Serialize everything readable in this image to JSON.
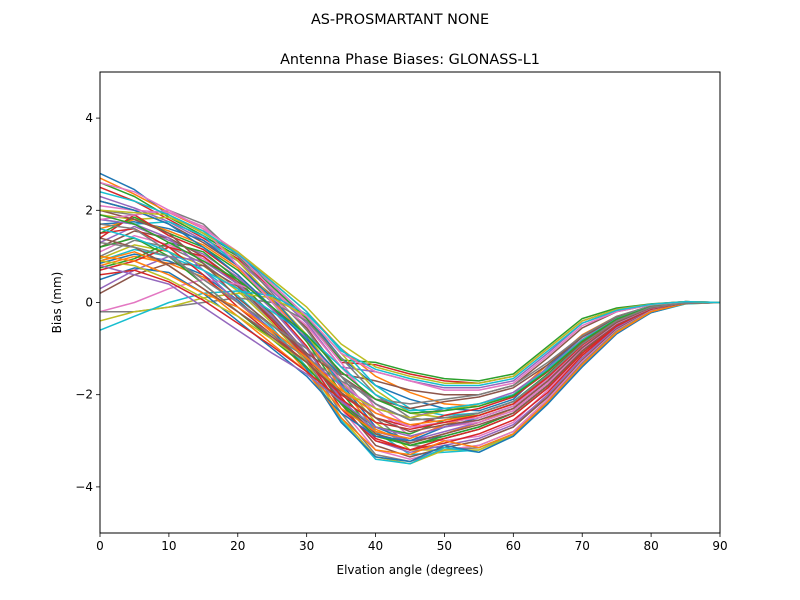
{
  "figure": {
    "suptitle": "AS-PROSMARTANT  NONE"
  },
  "chart_data": {
    "type": "line",
    "title": "Antenna Phase Biases: GLONASS-L1",
    "xlabel": "Elvation angle (degrees)",
    "ylabel": "Bias (mm)",
    "xlim": [
      0,
      90
    ],
    "ylim": [
      -5,
      5
    ],
    "xticks": [
      0,
      10,
      20,
      30,
      40,
      50,
      60,
      70,
      80,
      90
    ],
    "yticks": [
      -4,
      -2,
      0,
      2,
      4
    ],
    "grid": false,
    "legend": "none",
    "x": [
      0,
      5,
      10,
      15,
      20,
      25,
      30,
      35,
      40,
      45,
      50,
      55,
      60,
      65,
      70,
      75,
      80,
      85,
      90
    ],
    "series_colors": [
      "#1f77b4",
      "#ff7f0e",
      "#2ca02c",
      "#d62728",
      "#9467bd",
      "#8c564b",
      "#e377c2",
      "#7f7f7f",
      "#bcbd22",
      "#17becf"
    ],
    "series": [
      {
        "values": [
          2.8,
          2.45,
          1.9,
          1.5,
          1.05,
          0.4,
          -0.3,
          -1.2,
          -1.8,
          -2.1,
          -2.3,
          -2.35,
          -2.1,
          -1.4,
          -0.75,
          -0.35,
          -0.1,
          0.02,
          0.0
        ]
      },
      {
        "values": [
          2.7,
          2.35,
          1.95,
          1.6,
          1.1,
          0.45,
          -0.2,
          -1.0,
          -1.6,
          -1.95,
          -2.2,
          -2.25,
          -2.0,
          -1.35,
          -0.7,
          -0.3,
          -0.08,
          0.02,
          0.0
        ]
      },
      {
        "values": [
          2.6,
          2.3,
          1.85,
          1.45,
          1.0,
          0.35,
          -0.35,
          -1.25,
          -1.3,
          -1.5,
          -1.65,
          -1.7,
          -1.55,
          -0.95,
          -0.35,
          -0.12,
          -0.03,
          0.02,
          0.0
        ]
      },
      {
        "values": [
          2.5,
          2.2,
          1.8,
          1.4,
          0.95,
          0.3,
          -0.4,
          -1.3,
          -1.35,
          -1.55,
          -1.7,
          -1.75,
          -1.6,
          -1.0,
          -0.4,
          -0.15,
          -0.04,
          0.02,
          0.0
        ]
      },
      {
        "values": [
          2.3,
          2.05,
          1.75,
          1.35,
          0.9,
          0.25,
          -0.45,
          -1.4,
          -1.5,
          -1.7,
          -1.85,
          -1.85,
          -1.7,
          -1.1,
          -0.45,
          -0.18,
          -0.05,
          0.01,
          0.0
        ]
      },
      {
        "values": [
          2.2,
          2.0,
          1.7,
          1.3,
          0.8,
          0.15,
          -0.55,
          -1.55,
          -1.7,
          -1.9,
          -2.0,
          -2.0,
          -1.8,
          -1.2,
          -0.55,
          -0.2,
          -0.05,
          0.01,
          0.0
        ]
      },
      {
        "values": [
          2.1,
          2.0,
          1.95,
          1.65,
          1.05,
          0.3,
          -0.4,
          -1.3,
          -2.3,
          -2.9,
          -3.0,
          -2.9,
          -2.6,
          -1.9,
          -1.1,
          -0.5,
          -0.15,
          -0.02,
          0.0
        ]
      },
      {
        "values": [
          2.0,
          1.9,
          2.0,
          1.7,
          1.0,
          0.2,
          -0.6,
          -1.6,
          -2.5,
          -3.1,
          -3.15,
          -3.0,
          -2.7,
          -2.0,
          -1.2,
          -0.55,
          -0.18,
          -0.02,
          0.0
        ]
      },
      {
        "values": [
          1.9,
          1.8,
          1.85,
          1.55,
          0.9,
          0.1,
          -0.7,
          -1.7,
          -2.6,
          -3.2,
          -3.2,
          -3.1,
          -2.8,
          -2.1,
          -1.3,
          -0.6,
          -0.2,
          -0.03,
          0.0
        ]
      },
      {
        "values": [
          1.8,
          1.7,
          1.75,
          1.45,
          0.8,
          0.0,
          -0.8,
          -1.8,
          -2.8,
          -3.3,
          -3.25,
          -3.2,
          -2.85,
          -2.15,
          -1.35,
          -0.65,
          -0.22,
          -0.03,
          0.0
        ]
      },
      {
        "values": [
          1.7,
          1.75,
          1.6,
          1.35,
          0.8,
          0.1,
          -0.75,
          -1.75,
          -2.7,
          -3.0,
          -2.9,
          -2.7,
          -2.4,
          -1.8,
          -1.05,
          -0.45,
          -0.12,
          -0.01,
          0.0
        ]
      },
      {
        "values": [
          1.6,
          1.8,
          1.55,
          1.25,
          0.75,
          0.05,
          -0.8,
          -1.85,
          -2.75,
          -3.05,
          -2.85,
          -2.6,
          -2.3,
          -1.7,
          -1.0,
          -0.42,
          -0.1,
          -0.01,
          0.0
        ]
      },
      {
        "values": [
          1.5,
          1.85,
          1.5,
          1.2,
          0.7,
          0.0,
          -0.85,
          -1.95,
          -2.85,
          -3.1,
          -2.95,
          -2.75,
          -2.45,
          -1.85,
          -1.1,
          -0.48,
          -0.13,
          -0.01,
          0.0
        ]
      },
      {
        "values": [
          1.4,
          1.9,
          1.45,
          1.15,
          0.6,
          -0.1,
          -0.95,
          -2.05,
          -2.95,
          -3.2,
          -3.05,
          -2.85,
          -2.55,
          -1.95,
          -1.15,
          -0.52,
          -0.15,
          -0.02,
          0.0
        ]
      },
      {
        "values": [
          1.3,
          1.65,
          1.35,
          1.05,
          0.55,
          -0.15,
          -1.0,
          -2.1,
          -3.0,
          -3.25,
          -3.1,
          -2.95,
          -2.65,
          -2.0,
          -1.2,
          -0.55,
          -0.16,
          -0.02,
          0.0
        ]
      },
      {
        "values": [
          1.2,
          1.55,
          1.4,
          1.0,
          0.45,
          -0.25,
          -1.1,
          -2.2,
          -3.1,
          -3.35,
          -3.15,
          -3.0,
          -2.7,
          -2.05,
          -1.25,
          -0.58,
          -0.17,
          -0.02,
          0.0
        ]
      },
      {
        "values": [
          1.1,
          1.45,
          1.25,
          0.95,
          0.4,
          -0.3,
          -1.15,
          -2.3,
          -3.2,
          -3.4,
          -3.2,
          -3.1,
          -2.8,
          -2.1,
          -1.28,
          -0.6,
          -0.18,
          -0.02,
          0.0
        ]
      },
      {
        "values": [
          1.0,
          1.35,
          1.2,
          0.85,
          0.3,
          -0.4,
          -1.25,
          -2.4,
          -3.3,
          -3.45,
          -3.2,
          -3.15,
          -2.85,
          -2.15,
          -1.32,
          -0.62,
          -0.19,
          -0.02,
          0.0
        ]
      },
      {
        "values": [
          0.95,
          1.25,
          1.1,
          0.8,
          0.25,
          -0.45,
          -1.3,
          -2.5,
          -3.35,
          -3.5,
          -3.2,
          -3.2,
          -2.88,
          -2.18,
          -1.35,
          -0.64,
          -0.2,
          -0.02,
          0.0
        ]
      },
      {
        "values": [
          0.9,
          1.15,
          1.0,
          0.7,
          0.15,
          -0.55,
          -1.4,
          -2.55,
          -3.4,
          -3.5,
          -3.15,
          -3.25,
          -2.9,
          -2.2,
          -1.38,
          -0.66,
          -0.21,
          -0.02,
          0.0
        ]
      },
      {
        "values": [
          0.85,
          1.05,
          0.9,
          0.6,
          0.05,
          -0.6,
          -1.45,
          -2.6,
          -3.35,
          -3.45,
          -3.1,
          -3.25,
          -2.9,
          -2.2,
          -1.4,
          -0.68,
          -0.22,
          -0.02,
          0.0
        ]
      },
      {
        "values": [
          0.8,
          1.0,
          0.85,
          0.55,
          0.0,
          -0.65,
          -1.5,
          -2.5,
          -3.2,
          -3.3,
          -3.0,
          -3.15,
          -2.85,
          -2.15,
          -1.35,
          -0.65,
          -0.2,
          -0.02,
          0.0
        ]
      },
      {
        "values": [
          0.75,
          0.95,
          1.3,
          1.1,
          0.5,
          -0.3,
          -1.1,
          -2.2,
          -2.9,
          -3.1,
          -2.9,
          -2.7,
          -2.4,
          -1.8,
          -1.05,
          -0.48,
          -0.13,
          -0.01,
          0.0
        ]
      },
      {
        "values": [
          0.7,
          0.9,
          1.2,
          1.0,
          0.4,
          -0.4,
          -1.2,
          -2.3,
          -3.0,
          -3.2,
          -2.95,
          -2.75,
          -2.45,
          -1.85,
          -1.1,
          -0.5,
          -0.14,
          -0.01,
          0.0
        ]
      },
      {
        "values": [
          0.3,
          0.7,
          1.0,
          0.9,
          0.4,
          -0.3,
          -1.1,
          -2.1,
          -2.8,
          -3.0,
          -2.8,
          -2.6,
          -2.35,
          -1.75,
          -1.0,
          -0.45,
          -0.12,
          -0.01,
          0.0
        ]
      },
      {
        "values": [
          0.2,
          0.6,
          0.85,
          0.8,
          0.35,
          -0.35,
          -1.15,
          -2.15,
          -2.85,
          -3.05,
          -2.85,
          -2.65,
          -2.4,
          -1.8,
          -1.05,
          -0.47,
          -0.13,
          -0.01,
          0.0
        ]
      },
      {
        "values": [
          -0.2,
          0.0,
          0.3,
          0.5,
          0.4,
          0.1,
          -0.5,
          -1.4,
          -2.2,
          -2.7,
          -2.7,
          -2.6,
          -2.35,
          -1.75,
          -1.0,
          -0.45,
          -0.12,
          -0.01,
          0.0
        ]
      },
      {
        "values": [
          -0.2,
          -0.2,
          -0.1,
          0.0,
          0.1,
          0.0,
          -0.4,
          -1.2,
          -2.0,
          -2.5,
          -2.6,
          -2.5,
          -2.25,
          -1.65,
          -0.95,
          -0.42,
          -0.11,
          -0.01,
          0.0
        ]
      },
      {
        "values": [
          -0.4,
          -0.2,
          -0.1,
          0.1,
          0.2,
          0.1,
          -0.3,
          -1.1,
          -1.9,
          -2.4,
          -2.5,
          -2.45,
          -2.2,
          -1.6,
          -0.9,
          -0.4,
          -0.1,
          -0.01,
          0.0
        ]
      },
      {
        "values": [
          -0.6,
          -0.3,
          0.0,
          0.2,
          0.25,
          0.15,
          -0.25,
          -1.0,
          -1.8,
          -2.3,
          -2.45,
          -2.4,
          -2.15,
          -1.55,
          -0.88,
          -0.38,
          -0.1,
          -0.01,
          0.0
        ]
      },
      {
        "values": [
          0.5,
          0.75,
          0.65,
          0.2,
          -0.4,
          -1.0,
          -1.6,
          -2.4,
          -2.9,
          -3.0,
          -2.7,
          -2.5,
          -2.25,
          -1.65,
          -0.95,
          -0.42,
          -0.11,
          -0.01,
          0.0
        ]
      },
      {
        "values": [
          0.9,
          1.1,
          0.8,
          0.3,
          -0.3,
          -0.9,
          -1.5,
          -2.3,
          -2.8,
          -2.95,
          -2.65,
          -2.45,
          -2.2,
          -1.6,
          -0.92,
          -0.4,
          -0.1,
          -0.01,
          0.0
        ]
      },
      {
        "values": [
          1.2,
          1.4,
          1.0,
          0.4,
          -0.2,
          -0.8,
          -1.4,
          -2.2,
          -2.7,
          -2.85,
          -2.55,
          -2.4,
          -2.15,
          -1.55,
          -0.88,
          -0.38,
          -0.1,
          -0.01,
          0.0
        ]
      },
      {
        "values": [
          1.5,
          1.6,
          1.2,
          0.6,
          -0.1,
          -0.7,
          -1.3,
          -2.0,
          -2.5,
          -2.7,
          -2.45,
          -2.3,
          -2.05,
          -1.5,
          -0.85,
          -0.36,
          -0.09,
          -0.01,
          0.0
        ]
      },
      {
        "values": [
          1.8,
          1.7,
          1.4,
          0.7,
          0.0,
          -0.6,
          -1.2,
          -1.8,
          -2.3,
          -2.5,
          -2.3,
          -2.2,
          -1.95,
          -1.42,
          -0.8,
          -0.34,
          -0.08,
          -0.01,
          0.0
        ]
      },
      {
        "values": [
          2.0,
          1.8,
          1.5,
          0.85,
          0.1,
          -0.5,
          -1.1,
          -1.6,
          -2.1,
          -2.3,
          -2.15,
          -2.05,
          -1.85,
          -1.35,
          -0.75,
          -0.32,
          -0.08,
          -0.01,
          0.0
        ]
      },
      {
        "values": [
          1.8,
          1.9,
          2.0,
          1.6,
          0.8,
          0.0,
          -0.8,
          -1.7,
          -2.4,
          -2.7,
          -2.6,
          -2.5,
          -2.25,
          -1.65,
          -0.95,
          -0.42,
          -0.11,
          -0.01,
          0.0
        ]
      },
      {
        "values": [
          1.7,
          1.6,
          1.1,
          0.4,
          -0.2,
          -0.7,
          -1.2,
          -1.7,
          -2.1,
          -2.2,
          -2.1,
          -2.0,
          -1.8,
          -1.3,
          -0.72,
          -0.3,
          -0.07,
          -0.01,
          0.0
        ]
      },
      {
        "values": [
          0.9,
          0.8,
          0.5,
          0.1,
          -0.3,
          -0.8,
          -1.3,
          -1.9,
          -2.3,
          -2.5,
          -2.35,
          -2.2,
          -2.0,
          -1.45,
          -0.82,
          -0.35,
          -0.09,
          -0.01,
          0.0
        ]
      },
      {
        "values": [
          1.6,
          1.4,
          1.1,
          0.7,
          0.3,
          -0.2,
          -0.7,
          -1.4,
          -2.0,
          -2.35,
          -2.3,
          -2.2,
          -2.0,
          -1.45,
          -0.82,
          -0.35,
          -0.09,
          -0.01,
          0.0
        ]
      },
      {
        "values": [
          2.2,
          2.0,
          1.7,
          1.2,
          0.6,
          -0.1,
          -0.8,
          -1.6,
          -2.2,
          -2.55,
          -2.5,
          -2.4,
          -2.15,
          -1.58,
          -0.9,
          -0.4,
          -0.1,
          -0.01,
          0.0
        ]
      },
      {
        "values": [
          1.0,
          0.9,
          0.6,
          0.2,
          -0.1,
          -0.6,
          -1.2,
          -1.9,
          -2.4,
          -2.65,
          -2.55,
          -2.45,
          -2.2,
          -1.62,
          -0.92,
          -0.4,
          -0.1,
          -0.01,
          0.0
        ]
      },
      {
        "values": [
          1.9,
          1.7,
          1.3,
          0.9,
          0.5,
          -0.1,
          -0.7,
          -1.5,
          -2.1,
          -2.4,
          -2.35,
          -2.25,
          -2.02,
          -1.48,
          -0.84,
          -0.36,
          -0.09,
          -0.01,
          0.0
        ]
      },
      {
        "values": [
          0.6,
          0.7,
          0.45,
          0.05,
          -0.45,
          -0.95,
          -1.5,
          -2.1,
          -2.6,
          -2.75,
          -2.6,
          -2.45,
          -2.2,
          -1.62,
          -0.92,
          -0.4,
          -0.1,
          -0.01,
          0.0
        ]
      },
      {
        "values": [
          0.8,
          0.6,
          0.4,
          -0.1,
          -0.6,
          -1.1,
          -1.55,
          -2.15,
          -2.7,
          -2.9,
          -2.7,
          -2.55,
          -2.3,
          -1.7,
          -0.98,
          -0.43,
          -0.11,
          -0.01,
          0.0
        ]
      },
      {
        "values": [
          1.4,
          1.2,
          0.8,
          0.3,
          -0.2,
          -0.75,
          -1.3,
          -1.95,
          -2.5,
          -2.8,
          -2.65,
          -2.55,
          -2.3,
          -1.7,
          -0.98,
          -0.43,
          -0.11,
          -0.01,
          0.0
        ]
      },
      {
        "values": [
          2.6,
          2.4,
          2.0,
          1.6,
          1.1,
          0.4,
          -0.3,
          -1.1,
          -1.5,
          -1.7,
          -1.9,
          -1.9,
          -1.75,
          -1.15,
          -0.5,
          -0.2,
          -0.05,
          0.01,
          0.0
        ]
      },
      {
        "values": [
          1.3,
          1.2,
          1.0,
          0.5,
          0.0,
          -0.5,
          -1.0,
          -1.6,
          -2.2,
          -2.55,
          -2.5,
          -2.4,
          -2.15,
          -1.58,
          -0.9,
          -0.4,
          -0.1,
          -0.01,
          0.0
        ]
      },
      {
        "values": [
          2.0,
          1.95,
          1.9,
          1.5,
          1.1,
          0.5,
          -0.1,
          -0.9,
          -1.4,
          -1.6,
          -1.75,
          -1.75,
          -1.6,
          -1.0,
          -0.4,
          -0.15,
          -0.04,
          0.02,
          0.0
        ]
      },
      {
        "values": [
          2.4,
          2.2,
          1.9,
          1.55,
          1.05,
          0.45,
          -0.2,
          -1.05,
          -1.45,
          -1.65,
          -1.8,
          -1.8,
          -1.65,
          -1.05,
          -0.45,
          -0.17,
          -0.04,
          0.02,
          0.0
        ]
      }
    ]
  }
}
